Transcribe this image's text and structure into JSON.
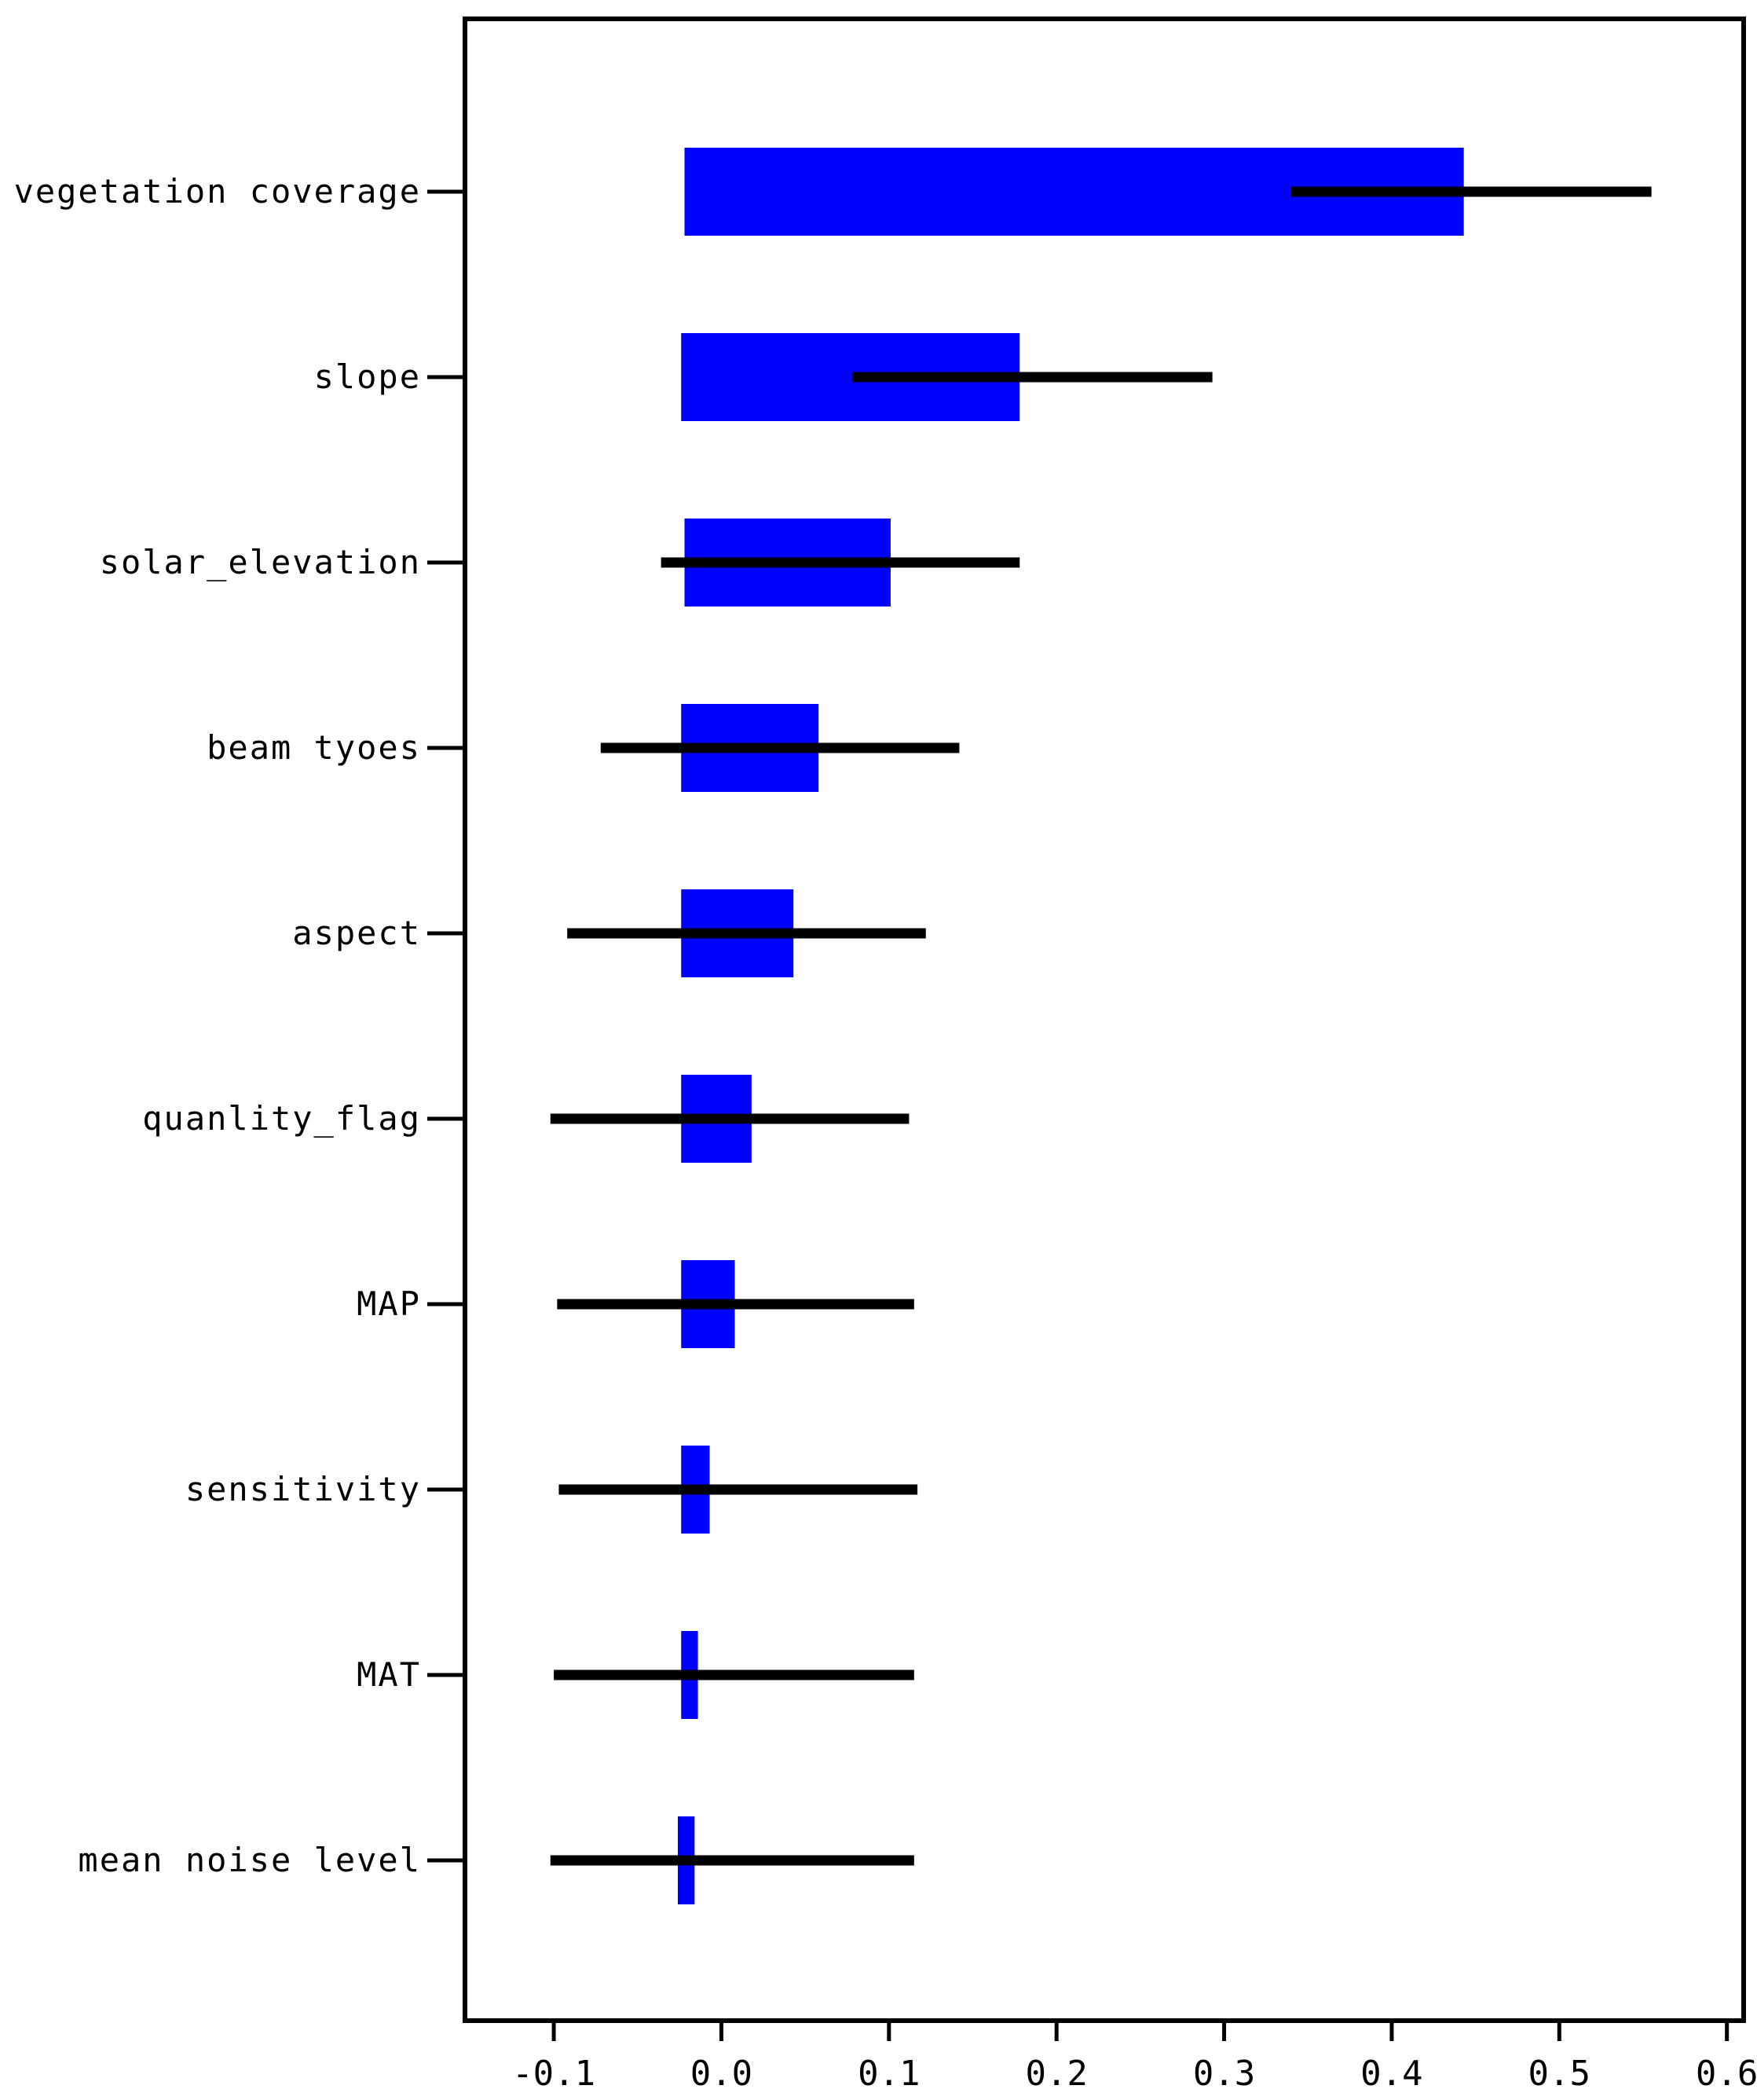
{
  "chart_data": {
    "type": "bar",
    "orientation": "horizontal",
    "categories": [
      "vegetation coverage",
      "slope",
      "solar_elevation",
      "beam tyoes",
      "aspect",
      "quanlity_flag",
      "MAP",
      "sensitivity",
      "MAT",
      "mean noise level"
    ],
    "bar_start": [
      -0.022,
      -0.024,
      -0.022,
      -0.024,
      -0.024,
      -0.024,
      -0.024,
      -0.024,
      -0.024,
      -0.026
    ],
    "bar_end": [
      0.443,
      0.178,
      0.101,
      0.058,
      0.043,
      0.018,
      0.008,
      -0.007,
      -0.014,
      -0.016
    ],
    "error_low": [
      0.34,
      0.078,
      -0.036,
      -0.072,
      -0.092,
      -0.102,
      -0.098,
      -0.097,
      -0.1,
      -0.102
    ],
    "error_high": [
      0.555,
      0.293,
      0.178,
      0.142,
      0.122,
      0.112,
      0.115,
      0.117,
      0.115,
      0.115
    ],
    "xticks": [
      "-0.1",
      "0.0",
      "0.1",
      "0.2",
      "0.3",
      "0.4",
      "0.5",
      "0.6"
    ],
    "xlim": [
      -0.153,
      0.61
    ],
    "bar_color": "#0000ff",
    "errorbar_color": "#000000",
    "grid": false,
    "legend": "none"
  }
}
